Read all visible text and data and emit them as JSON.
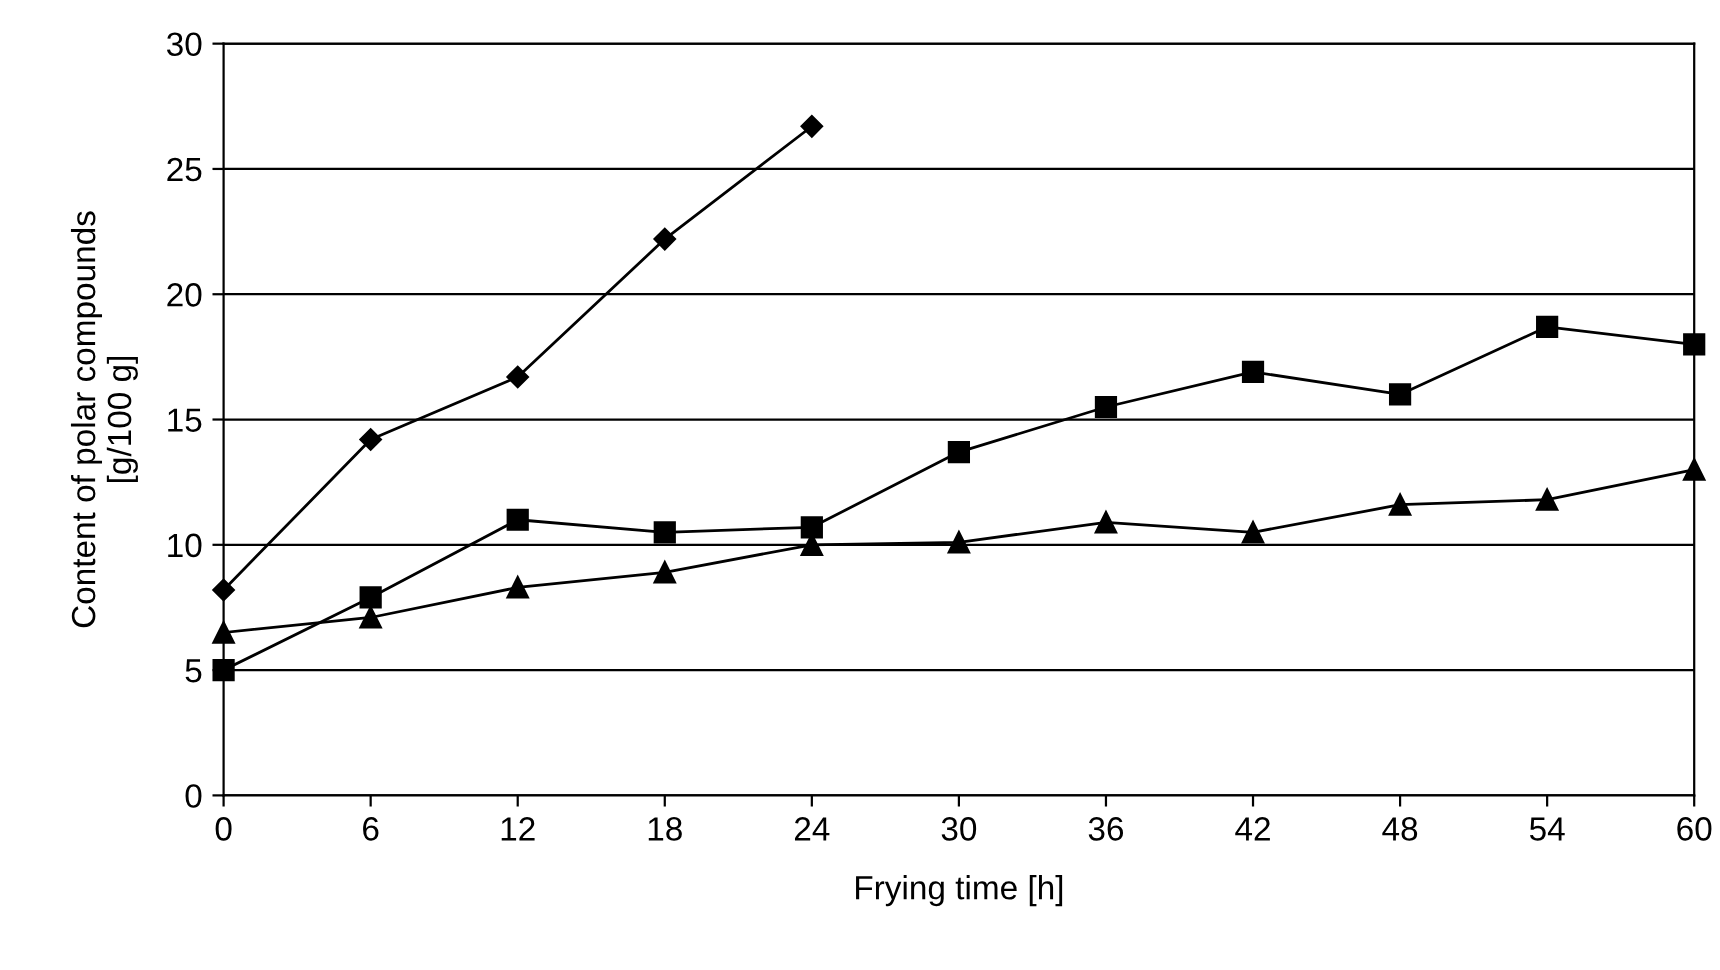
{
  "chart_data": {
    "type": "line",
    "xlabel": "Frying time [h]",
    "ylabel": "Content of polar compounds\n[g/100 g]",
    "x": [
      0,
      6,
      12,
      18,
      24,
      30,
      36,
      42,
      48,
      54,
      60
    ],
    "series": [
      {
        "color": "#000000",
        "marker": "diamond",
        "values": [
          8.2,
          14.2,
          16.7,
          22.2,
          26.7,
          null,
          null,
          null,
          null,
          null,
          null
        ]
      },
      {
        "color": "#000000",
        "marker": "square",
        "values": [
          5.0,
          7.9,
          11.0,
          10.5,
          10.7,
          13.7,
          15.5,
          16.9,
          16.0,
          18.7,
          18.0
        ]
      },
      {
        "color": "#000000",
        "marker": "triangle",
        "values": [
          6.5,
          7.1,
          8.3,
          8.9,
          10.0,
          10.1,
          10.9,
          10.5,
          11.6,
          11.8,
          13.0
        ]
      }
    ],
    "xlim": [
      0,
      60
    ],
    "xticks": [
      0,
      6,
      12,
      18,
      24,
      30,
      36,
      42,
      48,
      54,
      60
    ],
    "ylim": [
      0,
      30
    ],
    "yticks": [
      0,
      5,
      10,
      15,
      20,
      25,
      30
    ],
    "grid": "y",
    "legend": false,
    "line_style": "solid"
  }
}
